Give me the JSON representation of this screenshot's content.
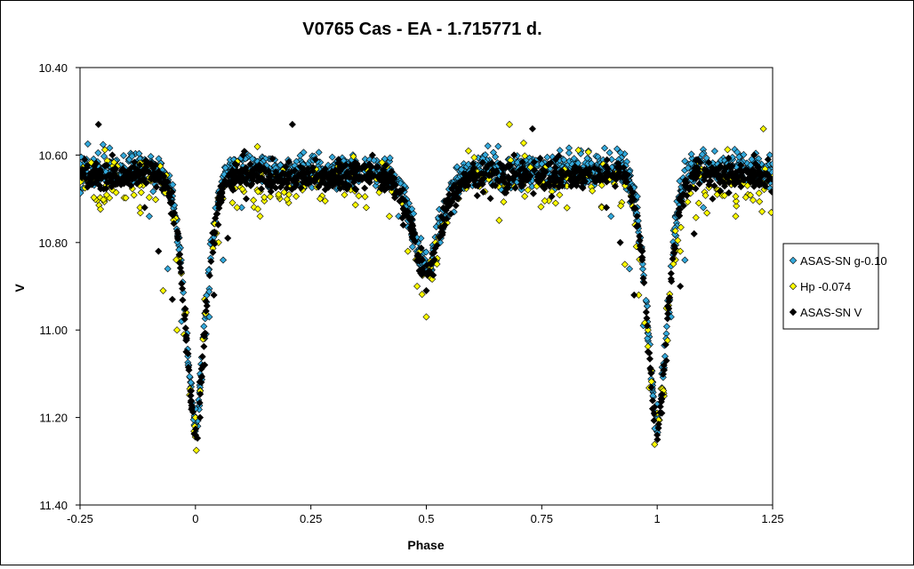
{
  "chart_data": {
    "type": "scatter",
    "title": "V0765 Cas - EA - 1.715771 d.",
    "xlabel": "Phase",
    "ylabel": "V",
    "xlim": [
      -0.25,
      1.25
    ],
    "ylim": [
      10.4,
      11.4
    ],
    "y_inverted": true,
    "grid": false,
    "legend_position": "right",
    "x_ticks": [
      "-0.25",
      "0",
      "0.25",
      "0.5",
      "0.75",
      "1",
      "1.25"
    ],
    "y_ticks": [
      "10.40",
      "10.60",
      "10.80",
      "11.00",
      "11.20",
      "11.40"
    ],
    "light_curve": {
      "period_days": 1.715771,
      "max_mag": 10.62,
      "primary_min_phase": 0.0,
      "primary_min_mag": 11.22,
      "secondary_min_phase": 0.5,
      "secondary_min_mag": 10.86
    },
    "series": [
      {
        "name": "ASAS-SN g-0.10",
        "marker": "diamond",
        "color": "#33a9dc",
        "points": [
          [
            -0.25,
            10.62
          ],
          [
            -0.2,
            10.63
          ],
          [
            -0.15,
            10.66
          ],
          [
            -0.1,
            10.74
          ],
          [
            -0.06,
            10.86
          ],
          [
            -0.03,
            10.98
          ],
          [
            -0.01,
            11.12
          ],
          [
            0.0,
            11.18
          ],
          [
            0.01,
            11.1
          ],
          [
            0.03,
            10.97
          ],
          [
            0.06,
            10.84
          ],
          [
            0.1,
            10.72
          ],
          [
            0.15,
            10.66
          ],
          [
            0.2,
            10.64
          ],
          [
            0.25,
            10.63
          ],
          [
            0.3,
            10.63
          ],
          [
            0.35,
            10.64
          ],
          [
            0.4,
            10.68
          ],
          [
            0.44,
            10.74
          ],
          [
            0.47,
            10.81
          ],
          [
            0.5,
            10.86
          ],
          [
            0.53,
            10.8
          ],
          [
            0.56,
            10.73
          ],
          [
            0.6,
            10.67
          ],
          [
            0.65,
            10.64
          ],
          [
            0.7,
            10.63
          ],
          [
            0.75,
            10.62
          ],
          [
            0.8,
            10.63
          ],
          [
            0.85,
            10.66
          ],
          [
            0.9,
            10.74
          ],
          [
            0.94,
            10.86
          ],
          [
            0.97,
            10.99
          ],
          [
            0.99,
            11.12
          ],
          [
            1.0,
            11.17
          ],
          [
            1.01,
            11.1
          ],
          [
            1.03,
            10.97
          ],
          [
            1.06,
            10.84
          ],
          [
            1.1,
            10.72
          ],
          [
            1.15,
            10.66
          ],
          [
            1.2,
            10.64
          ],
          [
            1.25,
            10.62
          ]
        ]
      },
      {
        "name": "Hp -0.074",
        "marker": "diamond",
        "color": "#ffff00",
        "points": [
          [
            -0.25,
            10.64
          ],
          [
            -0.22,
            10.66
          ],
          [
            -0.18,
            10.68
          ],
          [
            -0.12,
            10.72
          ],
          [
            -0.07,
            10.91
          ],
          [
            -0.04,
            11.0
          ],
          [
            -0.02,
            10.96
          ],
          [
            0.0,
            11.2
          ],
          [
            0.02,
            10.93
          ],
          [
            0.05,
            10.8
          ],
          [
            0.09,
            10.72
          ],
          [
            0.14,
            10.74
          ],
          [
            0.18,
            10.69
          ],
          [
            0.22,
            10.66
          ],
          [
            0.27,
            10.7
          ],
          [
            0.33,
            10.64
          ],
          [
            0.37,
            10.72
          ],
          [
            0.42,
            10.74
          ],
          [
            0.46,
            10.82
          ],
          [
            0.48,
            10.9
          ],
          [
            0.5,
            10.97
          ],
          [
            0.52,
            10.8
          ],
          [
            0.57,
            10.7
          ],
          [
            0.62,
            10.66
          ],
          [
            0.68,
            10.53
          ],
          [
            0.72,
            10.68
          ],
          [
            0.78,
            10.71
          ],
          [
            0.83,
            10.66
          ],
          [
            0.88,
            10.72
          ],
          [
            0.93,
            10.85
          ],
          [
            0.96,
            10.92
          ],
          [
            0.98,
            11.0
          ],
          [
            1.0,
            11.19
          ],
          [
            1.02,
            10.95
          ],
          [
            1.05,
            10.82
          ],
          [
            1.09,
            10.71
          ],
          [
            1.13,
            10.69
          ],
          [
            1.17,
            10.74
          ],
          [
            1.21,
            10.66
          ],
          [
            1.23,
            10.54
          ],
          [
            1.25,
            10.65
          ]
        ]
      },
      {
        "name": "ASAS-SN V",
        "marker": "diamond",
        "color": "#000000",
        "points": [
          [
            -0.24,
            10.61
          ],
          [
            -0.21,
            10.53
          ],
          [
            -0.18,
            10.6
          ],
          [
            -0.14,
            10.67
          ],
          [
            -0.11,
            10.72
          ],
          [
            -0.08,
            10.82
          ],
          [
            -0.05,
            10.93
          ],
          [
            -0.02,
            11.05
          ],
          [
            -0.01,
            11.15
          ],
          [
            0.0,
            11.24
          ],
          [
            0.01,
            11.2
          ],
          [
            0.02,
            11.08
          ],
          [
            0.04,
            10.92
          ],
          [
            0.07,
            10.79
          ],
          [
            0.11,
            10.7
          ],
          [
            0.16,
            10.65
          ],
          [
            0.21,
            10.53
          ],
          [
            0.26,
            10.61
          ],
          [
            0.31,
            10.61
          ],
          [
            0.36,
            10.63
          ],
          [
            0.41,
            10.66
          ],
          [
            0.45,
            10.76
          ],
          [
            0.48,
            10.84
          ],
          [
            0.5,
            10.91
          ],
          [
            0.51,
            10.87
          ],
          [
            0.54,
            10.76
          ],
          [
            0.58,
            10.66
          ],
          [
            0.63,
            10.63
          ],
          [
            0.69,
            10.6
          ],
          [
            0.73,
            10.54
          ],
          [
            0.78,
            10.61
          ],
          [
            0.84,
            10.64
          ],
          [
            0.89,
            10.72
          ],
          [
            0.92,
            10.8
          ],
          [
            0.95,
            10.92
          ],
          [
            0.98,
            11.05
          ],
          [
            0.99,
            11.18
          ],
          [
            1.0,
            11.24
          ],
          [
            1.01,
            11.19
          ],
          [
            1.02,
            11.07
          ],
          [
            1.05,
            10.9
          ],
          [
            1.08,
            10.78
          ],
          [
            1.12,
            10.7
          ],
          [
            1.17,
            10.64
          ],
          [
            1.21,
            10.6
          ],
          [
            1.24,
            10.61
          ]
        ]
      }
    ]
  }
}
